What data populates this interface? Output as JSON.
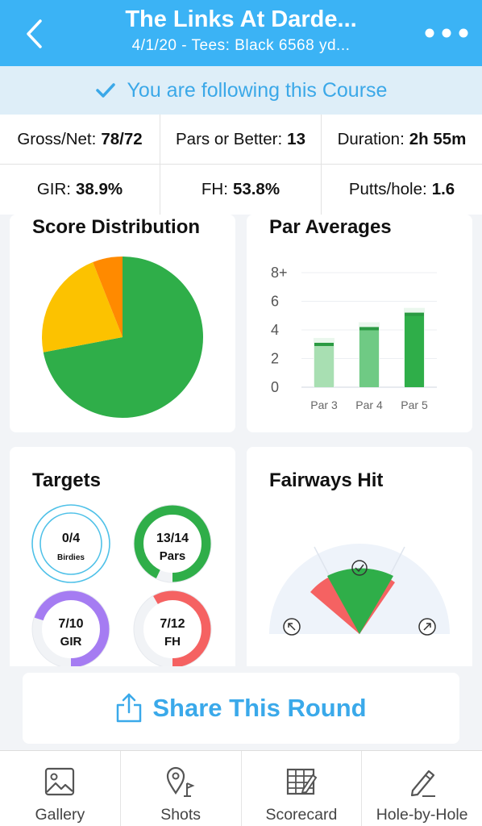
{
  "header": {
    "title": "The Links At Darde...",
    "subtitle": "4/1/20 - Tees: Black 6568 yd...",
    "back_icon": "chevron-left-icon",
    "more_icon": "more-dots-icon"
  },
  "follow_banner": {
    "text": "You are following this Course",
    "icon": "checkmark-icon"
  },
  "stats": {
    "gross_net_label": "Gross/Net:",
    "gross_net_value": "78/72",
    "pars_label": "Pars or Better:",
    "pars_value": "13",
    "duration_label": "Duration:",
    "duration_value": "2h 55m",
    "gir_label": "GIR:",
    "gir_value": "38.9%",
    "fh_label": "FH:",
    "fh_value": "53.8%",
    "putts_label": "Putts/hole:",
    "putts_value": "1.6"
  },
  "score_distribution": {
    "title": "Score Distribution",
    "chart_data": {
      "type": "pie",
      "slices": [
        {
          "value": 72,
          "color": "#2fae49"
        },
        {
          "value": 22,
          "color": "#fcc200"
        },
        {
          "value": 6,
          "color": "#ff8a00"
        }
      ]
    }
  },
  "par_averages": {
    "title": "Par Averages",
    "chart_data": {
      "type": "bar",
      "categories": [
        "Par 3",
        "Par 4",
        "Par 5"
      ],
      "values": [
        3.1,
        4.2,
        5.2
      ],
      "ylim": [
        0,
        8
      ],
      "y_ticks": [
        "0",
        "2",
        "4",
        "6",
        "8+"
      ],
      "colors": [
        "#a8dfb2",
        "#6fca84",
        "#2fae49"
      ],
      "grid": true
    }
  },
  "targets": {
    "title": "Targets",
    "items": [
      {
        "value": "0/4",
        "label": "Birdies",
        "fraction": 0,
        "color": "#4fc1e8"
      },
      {
        "value": "13/14",
        "label": "Pars",
        "fraction": 0.9286,
        "color": "#2fae49"
      },
      {
        "value": "7/10",
        "label": "GIR",
        "fraction": 0.7,
        "color": "#a57cf2"
      },
      {
        "value": "7/12",
        "label": "FH",
        "fraction": 0.5833,
        "color": "#f56262"
      }
    ]
  },
  "fairways_hit": {
    "title": "Fairways Hit",
    "center_icon": "check-circle-icon",
    "left_icon": "arrow-up-left-icon",
    "right_icon": "arrow-up-right-icon",
    "colors": {
      "hit": "#2fae49",
      "miss": "#f56262",
      "track": "#eef3fa"
    }
  },
  "share": {
    "label": "Share This Round",
    "icon": "share-icon"
  },
  "tabbar": [
    {
      "label": "Gallery",
      "icon": "gallery-icon"
    },
    {
      "label": "Shots",
      "icon": "shots-pin-icon"
    },
    {
      "label": "Scorecard",
      "icon": "scorecard-icon"
    },
    {
      "label": "Hole-by-Hole",
      "icon": "pencil-icon"
    }
  ]
}
